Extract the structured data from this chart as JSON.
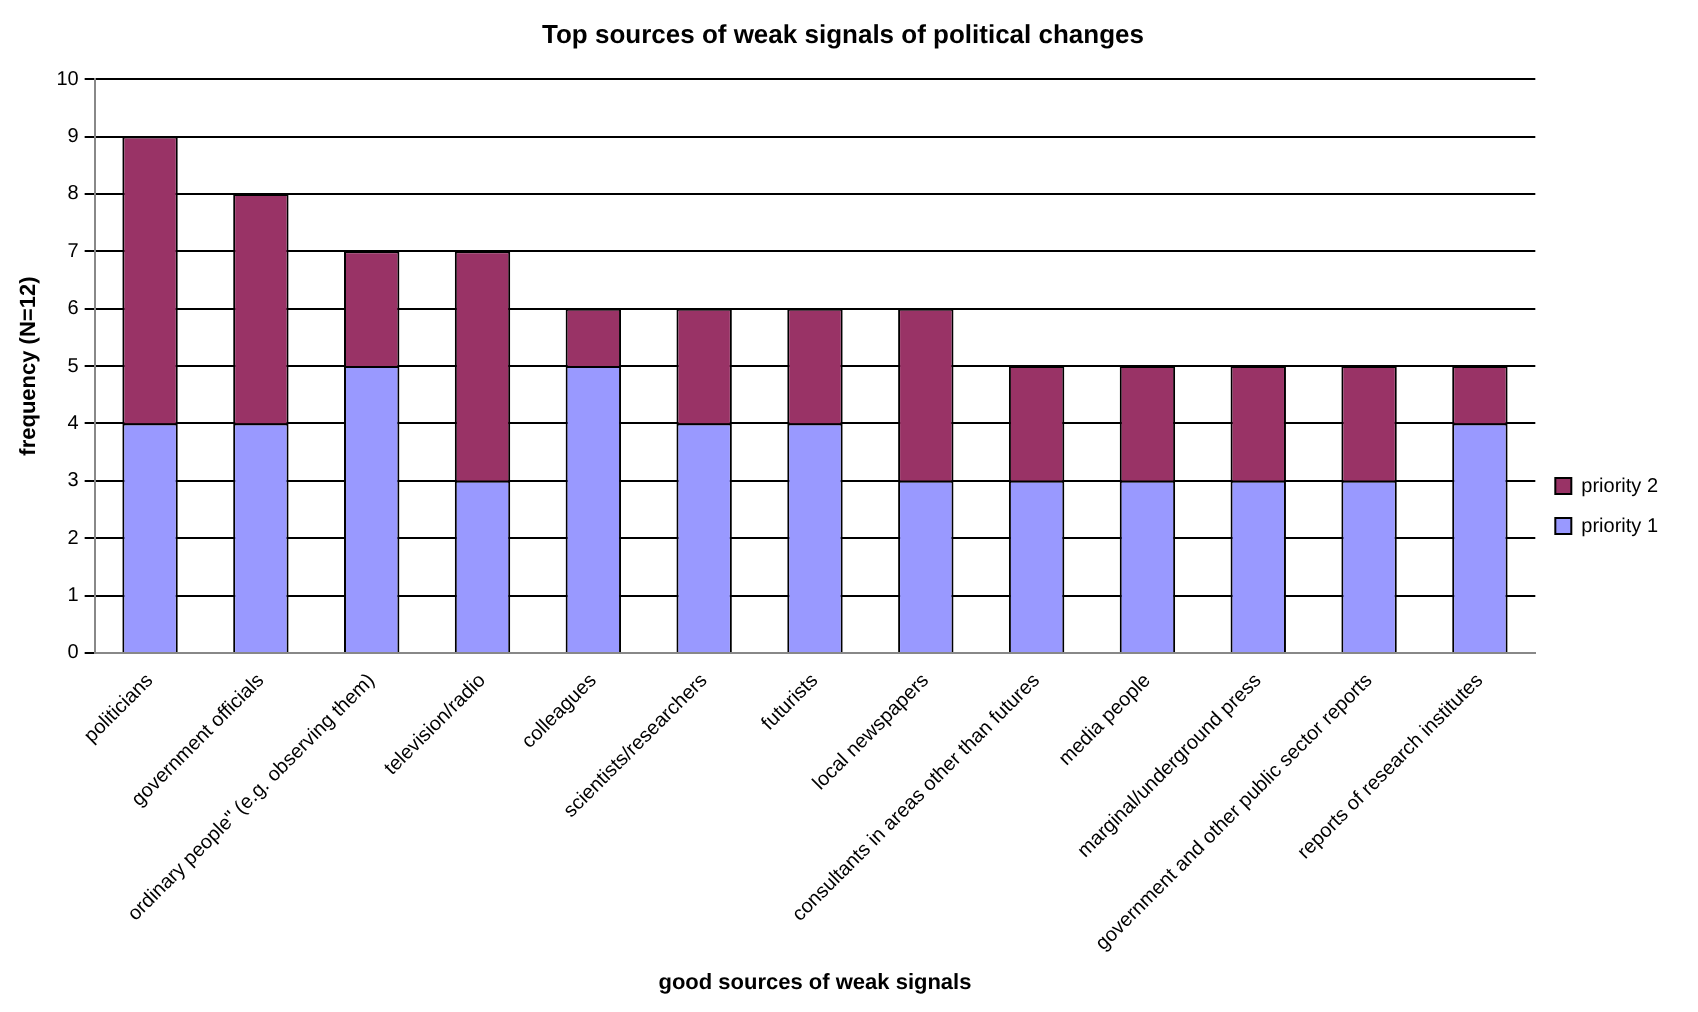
{
  "chart_data": {
    "type": "bar",
    "title": "Top sources of weak signals of political changes",
    "xlabel": "good sources of weak signals",
    "ylabel": "frequency (N=12)",
    "categories": [
      "politicians",
      "government officials",
      "ordinary people\" (e.g. observing them)",
      "television/radio",
      "colleagues",
      "scientists/researchers",
      "futurists",
      "local newspapers",
      "consultants in areas other than futures",
      "media people",
      "marginal/underground press",
      "government and other public sector reports",
      "reports of research institutes"
    ],
    "series": [
      {
        "name": "priority 1",
        "color": "#9999ff",
        "values": [
          4,
          4,
          5,
          3,
          5,
          4,
          4,
          3,
          3,
          3,
          3,
          3,
          4
        ]
      },
      {
        "name": "priority 2",
        "color": "#993366",
        "values": [
          5,
          4,
          2,
          4,
          1,
          2,
          2,
          3,
          2,
          2,
          2,
          2,
          1
        ]
      }
    ],
    "stacked": true,
    "ylim": [
      0,
      10
    ],
    "yticks": [
      0,
      1,
      2,
      3,
      4,
      5,
      6,
      7,
      8,
      9,
      10
    ],
    "grid": "y",
    "legend": "right"
  }
}
